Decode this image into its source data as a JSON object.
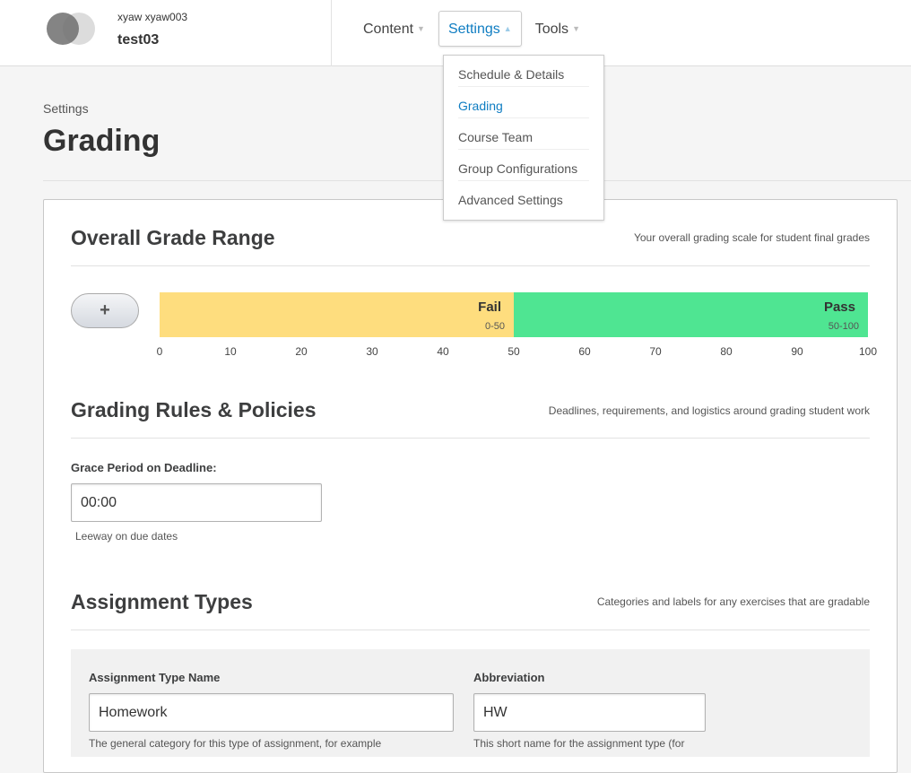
{
  "header": {
    "org": "xyaw  xyaw003",
    "course": "test03",
    "nav": [
      {
        "label": "Content"
      },
      {
        "label": "Settings"
      },
      {
        "label": "Tools"
      }
    ]
  },
  "settings_menu": [
    "Schedule & Details",
    "Grading",
    "Course Team",
    "Group Configurations",
    "Advanced Settings"
  ],
  "page": {
    "breadcrumb": "Settings",
    "title": "Grading"
  },
  "grade_range": {
    "title": "Overall Grade Range",
    "description": "Your overall grading scale for student final grades",
    "add_label": "+",
    "grades": [
      {
        "name": "Fail",
        "range": "0-50",
        "start": 0,
        "end": 50,
        "color": "#fedd7e"
      },
      {
        "name": "Pass",
        "range": "50-100",
        "start": 50,
        "end": 100,
        "color": "#4fe592"
      }
    ],
    "ticks": [
      "0",
      "10",
      "20",
      "30",
      "40",
      "50",
      "60",
      "70",
      "80",
      "90",
      "100"
    ]
  },
  "rules": {
    "title": "Grading Rules & Policies",
    "description": "Deadlines, requirements, and logistics around grading student work",
    "grace_label": "Grace Period on Deadline:",
    "grace_value": "00:00",
    "grace_help": "Leeway on due dates"
  },
  "assignments": {
    "title": "Assignment Types",
    "description": "Categories and labels for any exercises that are gradable",
    "name_label": "Assignment Type Name",
    "name_value": "Homework",
    "name_help": "The general category for this type of assignment, for example",
    "abbr_label": "Abbreviation",
    "abbr_value": "HW",
    "abbr_help": "This short name for the assignment type (for"
  }
}
